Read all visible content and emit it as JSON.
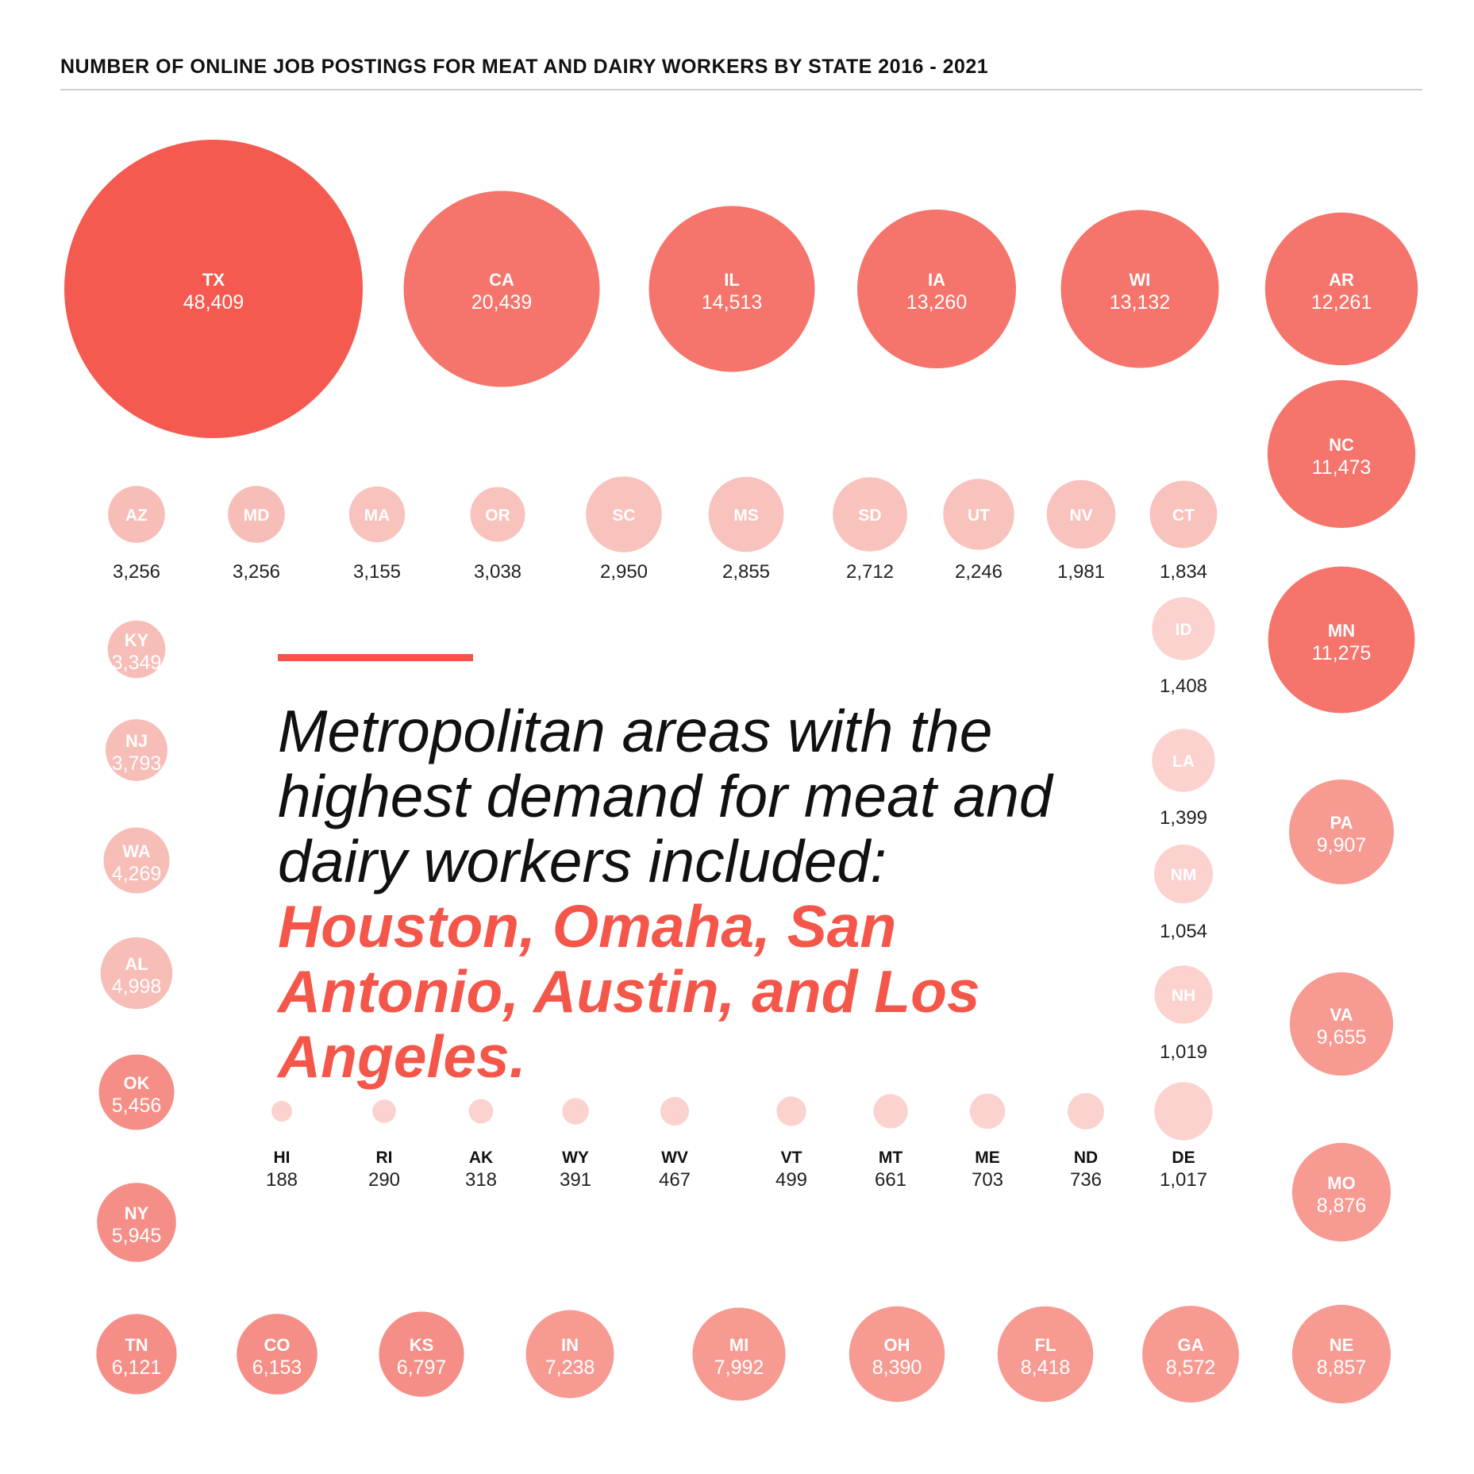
{
  "colors": {
    "accent": "#F4564A",
    "text_dark": "#111111",
    "rule": "#cfcfcf"
  },
  "header": {
    "title": "NUMBER OF ONLINE JOB POSTINGS FOR MEAT AND DAIRY WORKERS BY STATE 2016 - 2021"
  },
  "headline": {
    "plain": "Metropolitan areas with the highest demand for meat and dairy workers included: ",
    "highlight": "Houston, Omaha, San Antonio, Austin, and Los Angeles."
  },
  "chart_data": {
    "type": "bubble",
    "title": "NUMBER OF ONLINE JOB POSTINGS FOR MEAT AND DAIRY WORKERS BY STATE 2016 - 2021",
    "color": "#F4564A",
    "states": [
      {
        "state": "TX",
        "value": 48409,
        "value_label": "48,409"
      },
      {
        "state": "CA",
        "value": 20439,
        "value_label": "20,439"
      },
      {
        "state": "IL",
        "value": 14513,
        "value_label": "14,513"
      },
      {
        "state": "IA",
        "value": 13260,
        "value_label": "13,260"
      },
      {
        "state": "WI",
        "value": 13132,
        "value_label": "13,132"
      },
      {
        "state": "AR",
        "value": 12261,
        "value_label": "12,261"
      },
      {
        "state": "NC",
        "value": 11473,
        "value_label": "11,473"
      },
      {
        "state": "MN",
        "value": 11275,
        "value_label": "11,275"
      },
      {
        "state": "PA",
        "value": 9907,
        "value_label": "9,907"
      },
      {
        "state": "VA",
        "value": 9655,
        "value_label": "9,655"
      },
      {
        "state": "MO",
        "value": 8876,
        "value_label": "8,876"
      },
      {
        "state": "NE",
        "value": 8857,
        "value_label": "8,857"
      },
      {
        "state": "GA",
        "value": 8572,
        "value_label": "8,572"
      },
      {
        "state": "FL",
        "value": 8418,
        "value_label": "8,418"
      },
      {
        "state": "OH",
        "value": 8390,
        "value_label": "8,390"
      },
      {
        "state": "MI",
        "value": 7992,
        "value_label": "7,992"
      },
      {
        "state": "IN",
        "value": 7238,
        "value_label": "7,238"
      },
      {
        "state": "KS",
        "value": 6797,
        "value_label": "6,797"
      },
      {
        "state": "CO",
        "value": 6153,
        "value_label": "6,153"
      },
      {
        "state": "TN",
        "value": 6121,
        "value_label": "6,121"
      },
      {
        "state": "NY",
        "value": 5945,
        "value_label": "5,945"
      },
      {
        "state": "OK",
        "value": 5456,
        "value_label": "5,456"
      },
      {
        "state": "AL",
        "value": 4998,
        "value_label": "4,998"
      },
      {
        "state": "WA",
        "value": 4269,
        "value_label": "4,269"
      },
      {
        "state": "NJ",
        "value": 3793,
        "value_label": "3,793"
      },
      {
        "state": "KY",
        "value": 3349,
        "value_label": "3,349"
      },
      {
        "state": "AZ",
        "value": 3256,
        "value_label": "3,256"
      },
      {
        "state": "MD",
        "value": 3256,
        "value_label": "3,256"
      },
      {
        "state": "MA",
        "value": 3155,
        "value_label": "3,155"
      },
      {
        "state": "OR",
        "value": 3038,
        "value_label": "3,038"
      },
      {
        "state": "SC",
        "value": 2950,
        "value_label": "2,950"
      },
      {
        "state": "MS",
        "value": 2855,
        "value_label": "2,855"
      },
      {
        "state": "SD",
        "value": 2712,
        "value_label": "2,712"
      },
      {
        "state": "UT",
        "value": 2246,
        "value_label": "2,246"
      },
      {
        "state": "NV",
        "value": 1981,
        "value_label": "1,981"
      },
      {
        "state": "CT",
        "value": 1834,
        "value_label": "1,834"
      },
      {
        "state": "ID",
        "value": 1408,
        "value_label": "1,408"
      },
      {
        "state": "LA",
        "value": 1399,
        "value_label": "1,399"
      },
      {
        "state": "NM",
        "value": 1054,
        "value_label": "1,054"
      },
      {
        "state": "NH",
        "value": 1019,
        "value_label": "1,019"
      },
      {
        "state": "DE",
        "value": 1017,
        "value_label": "1,017"
      },
      {
        "state": "ND",
        "value": 736,
        "value_label": "736"
      },
      {
        "state": "ME",
        "value": 703,
        "value_label": "703"
      },
      {
        "state": "MT",
        "value": 661,
        "value_label": "661"
      },
      {
        "state": "VT",
        "value": 499,
        "value_label": "499"
      },
      {
        "state": "WV",
        "value": 467,
        "value_label": "467"
      },
      {
        "state": "WY",
        "value": 391,
        "value_label": "391"
      },
      {
        "state": "AK",
        "value": 318,
        "value_label": "318"
      },
      {
        "state": "RI",
        "value": 290,
        "value_label": "290"
      },
      {
        "state": "HI",
        "value": 188,
        "value_label": "188"
      }
    ]
  }
}
